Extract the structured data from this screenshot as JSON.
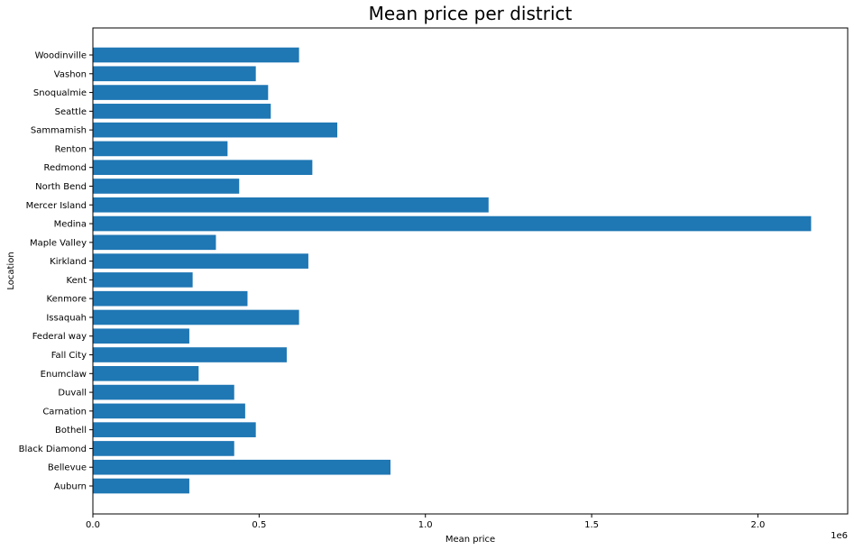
{
  "chart_data": {
    "type": "bar",
    "orientation": "horizontal",
    "title": "Mean price per district",
    "xlabel": "Mean price",
    "ylabel": "Location",
    "x_offset_text": "1e6",
    "xlim": [
      0,
      2.27
    ],
    "x_ticks": [
      {
        "value": 0.0,
        "label": "0.0"
      },
      {
        "value": 0.5,
        "label": "0.5"
      },
      {
        "value": 1.0,
        "label": "1.0"
      },
      {
        "value": 1.5,
        "label": "1.5"
      },
      {
        "value": 2.0,
        "label": "2.0"
      }
    ],
    "categories": [
      "Auburn",
      "Bellevue",
      "Black Diamond",
      "Bothell",
      "Carnation",
      "Duvall",
      "Enumclaw",
      "Fall City",
      "Federal way",
      "Issaquah",
      "Kenmore",
      "Kent",
      "Kirkland",
      "Maple Valley",
      "Medina",
      "Mercer Island",
      "North Bend",
      "Redmond",
      "Renton",
      "Sammamish",
      "Seattle",
      "Snoqualmie",
      "Vashon",
      "Woodinville"
    ],
    "values": [
      0.29,
      0.895,
      0.425,
      0.49,
      0.458,
      0.425,
      0.318,
      0.583,
      0.29,
      0.62,
      0.465,
      0.3,
      0.648,
      0.37,
      2.16,
      1.19,
      0.44,
      0.66,
      0.405,
      0.735,
      0.535,
      0.527,
      0.49,
      0.62
    ],
    "bar_color": "#1f77b4",
    "grid": false,
    "legend": "none"
  }
}
